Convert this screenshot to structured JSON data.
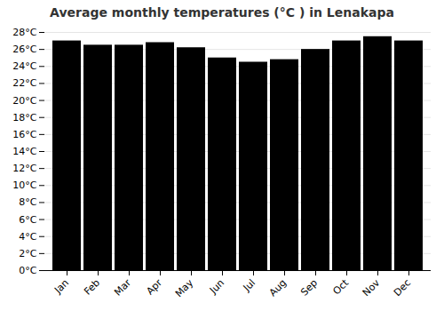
{
  "chart_data": {
    "type": "bar",
    "title": "Average monthly temperatures (°C ) in Lenakapa",
    "categories": [
      "Jan",
      "Feb",
      "Mar",
      "Apr",
      "May",
      "Jun",
      "Jul",
      "Aug",
      "Sep",
      "Oct",
      "Nov",
      "Dec"
    ],
    "values": [
      27.0,
      26.5,
      26.5,
      26.8,
      26.2,
      25.0,
      24.5,
      24.8,
      26.0,
      27.0,
      27.5,
      27.0
    ],
    "ylim": [
      0,
      28
    ],
    "yticks": [
      {
        "value": 0,
        "label": "0°C"
      },
      {
        "value": 2,
        "label": "2°C"
      },
      {
        "value": 4,
        "label": "4°C"
      },
      {
        "value": 6,
        "label": "6°C"
      },
      {
        "value": 8,
        "label": "8°C"
      },
      {
        "value": 10,
        "label": "10°C"
      },
      {
        "value": 12,
        "label": "12°C"
      },
      {
        "value": 14,
        "label": "14°C"
      },
      {
        "value": 16,
        "label": "16°C"
      },
      {
        "value": 18,
        "label": "18°C"
      },
      {
        "value": 20,
        "label": "20°C"
      },
      {
        "value": 22,
        "label": "22°C"
      },
      {
        "value": 24,
        "label": "24°C"
      },
      {
        "value": 26,
        "label": "26°C"
      },
      {
        "value": 28,
        "label": "28°C"
      }
    ],
    "grid": true
  }
}
